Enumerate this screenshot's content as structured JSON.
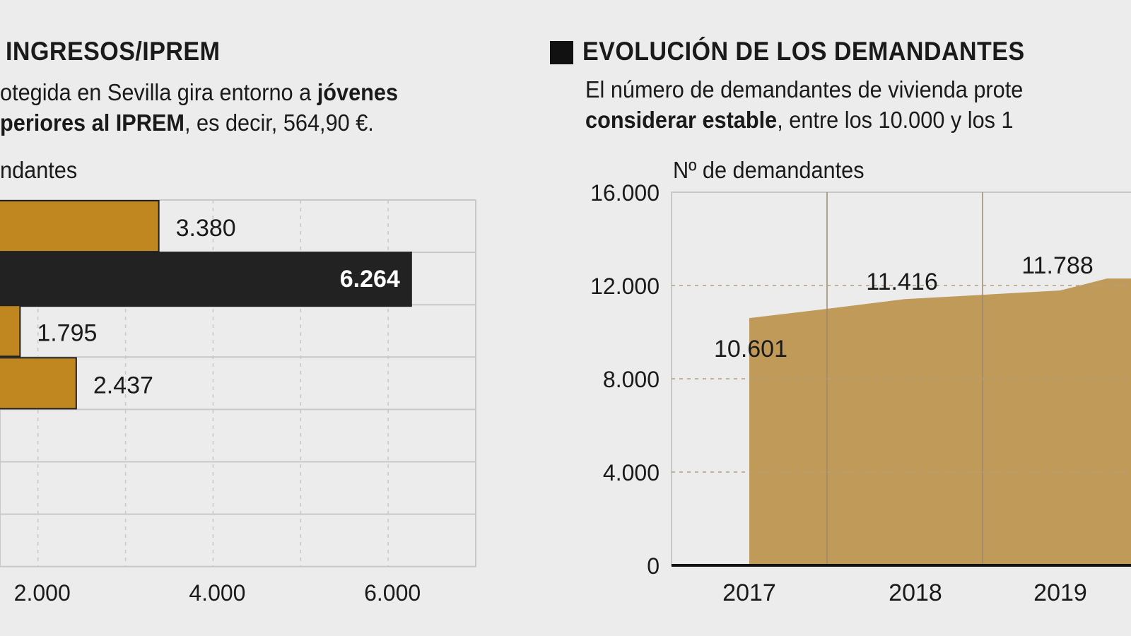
{
  "left": {
    "title": "INGRESOS/IPREM",
    "subtitle_line1_normal": "otegida en Sevilla gira entorno a ",
    "subtitle_line1_bold": "jóvenes",
    "subtitle_line2_bold": "periores al IPREM",
    "subtitle_line2_normal": ", es decir, 564,90 €.",
    "unit_label": "ndantes"
  },
  "right": {
    "title": "EVOLUCIÓN DE LOS DEMANDANTES",
    "subtitle_line1": "El número de demandantes de vivienda prote",
    "subtitle_line2_bold": "considerar estable",
    "subtitle_line2_normal": ", entre los 10.000 y los 1",
    "unit_label": "Nº de demandantes"
  },
  "chart_data": [
    {
      "type": "bar",
      "orientation": "horizontal",
      "values": [
        3380,
        6264,
        1795,
        2437
      ],
      "value_labels": [
        "3.380",
        "6.264",
        "1.795",
        "2.437"
      ],
      "highlight_index": 1,
      "xlim": [
        0,
        7000
      ],
      "x_ticks": [
        2000,
        4000,
        6000
      ],
      "x_tick_labels": [
        "2.000",
        "4.000",
        "6.000"
      ],
      "grid": true,
      "colors": {
        "bar": "#c0861f",
        "highlight": "#222222",
        "grid": "#c8c8c8"
      }
    },
    {
      "type": "area",
      "x_labels": [
        "2017",
        "2018",
        "2019"
      ],
      "points": [
        {
          "x": 2017.0,
          "y": 10601
        },
        {
          "x": 2017.5,
          "y": 11000
        },
        {
          "x": 2018.0,
          "y": 11416
        },
        {
          "x": 2018.5,
          "y": 11600
        },
        {
          "x": 2019.0,
          "y": 11788
        },
        {
          "x": 2019.3,
          "y": 12300
        }
      ],
      "value_labels": [
        {
          "x": 2017.0,
          "label": "10.601"
        },
        {
          "x": 2018.0,
          "label": "11.416"
        },
        {
          "x": 2019.0,
          "label": "11.788"
        }
      ],
      "ylim": [
        0,
        16000
      ],
      "y_ticks": [
        0,
        4000,
        8000,
        12000,
        16000
      ],
      "y_tick_labels": [
        "0",
        "4.000",
        "8.000",
        "12.000",
        "16.000"
      ],
      "grid": true,
      "colors": {
        "area": "#c09a58",
        "grid": "#c8c8c8"
      }
    }
  ]
}
